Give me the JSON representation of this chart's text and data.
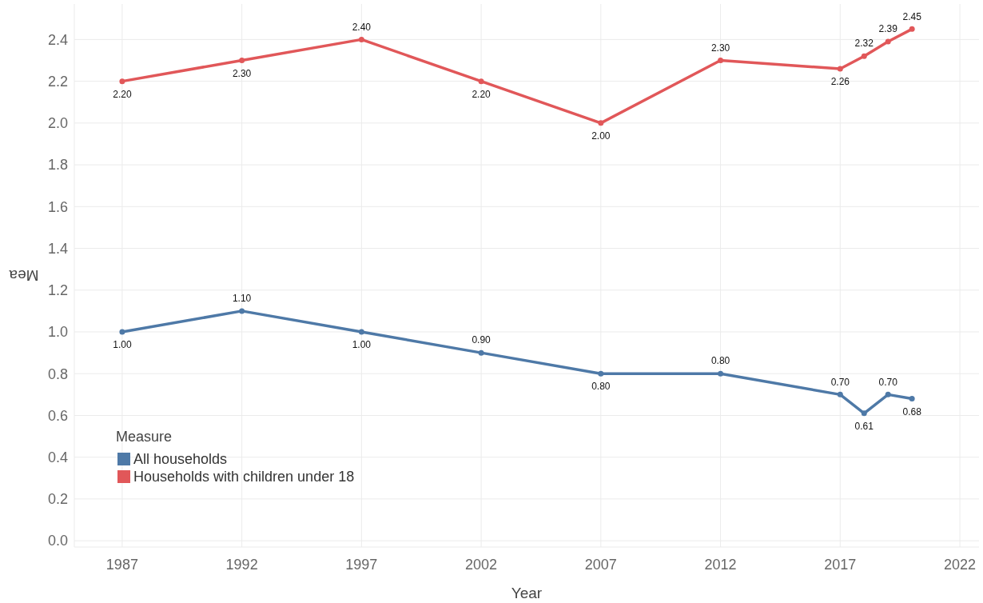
{
  "chart_data": {
    "type": "line",
    "xlabel": "Year",
    "ylabel": "Mea",
    "legend_title": "Measure",
    "legend": "bottom left",
    "x": [
      1987,
      1992,
      1997,
      2002,
      2007,
      2012,
      2017,
      2018,
      2019,
      2020
    ],
    "series": [
      {
        "name": "All households",
        "color": "#4e79a7",
        "values": [
          1.0,
          1.1,
          1.0,
          0.9,
          0.8,
          0.8,
          0.7,
          0.61,
          0.7,
          0.68
        ],
        "value_labels": [
          "1.00",
          "1.10",
          "1.00",
          "0.90",
          "0.80",
          "0.80",
          "0.70",
          "0.61",
          "0.70",
          "0.68"
        ]
      },
      {
        "name": "Households with children under 18",
        "color": "#e15759",
        "values": [
          2.2,
          2.3,
          2.4,
          2.2,
          2.0,
          2.3,
          2.26,
          2.32,
          2.39,
          2.45
        ],
        "value_labels": [
          "2.20",
          "2.30",
          "2.40",
          "2.20",
          "2.00",
          "2.30",
          "2.26",
          "2.32",
          "2.39",
          "2.45"
        ]
      }
    ],
    "marker": "circle",
    "line_style": "solid",
    "grid": true,
    "xlim": [
      1985,
      2022.8
    ],
    "xticks": [
      1987,
      1992,
      1997,
      2002,
      2007,
      2012,
      2017,
      2022
    ],
    "ylim": [
      -0.03,
      2.57
    ],
    "yticks": [
      {
        "value": 0,
        "label": "0.0"
      },
      0.2,
      0.4,
      0.6,
      0.8,
      {
        "value": 1,
        "label": "1.0"
      },
      1.2,
      1.4,
      1.6,
      1.8,
      {
        "value": 2,
        "label": "2.0"
      },
      2.2,
      2.4
    ]
  }
}
